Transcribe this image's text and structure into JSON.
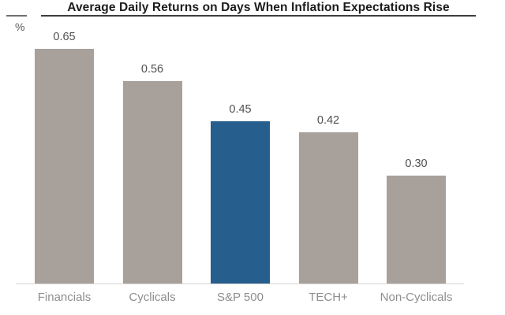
{
  "header": {
    "title": "Average Daily Returns on Days When Inflation Expectations Rise"
  },
  "y_axis": {
    "unit_label": "%"
  },
  "colors": {
    "bar_default": "#a8a19b",
    "bar_highlight": "#265e8d",
    "title_text": "#1c1c1c",
    "value_label_text": "#4f4f4f",
    "category_label_text": "#8e8e8e",
    "axis_line": "#d6d4d1"
  },
  "chart_data": {
    "type": "bar",
    "title": "Average Daily Returns on Days When Inflation Expectations Rise",
    "categories": [
      "Financials",
      "Cyclicals",
      "S&P 500",
      "TECH+",
      "Non-Cyclicals"
    ],
    "values": [
      0.65,
      0.56,
      0.45,
      0.42,
      0.3
    ],
    "value_labels": [
      "0.65",
      "0.56",
      "0.45",
      "0.42",
      "0.30"
    ],
    "highlighted_category": "S&P 500",
    "highlight_index": 2,
    "xlabel": "",
    "ylabel": "%",
    "ylim": [
      0,
      0.7
    ],
    "grid": false,
    "legend": false,
    "value_labels_position": "above-bars"
  }
}
